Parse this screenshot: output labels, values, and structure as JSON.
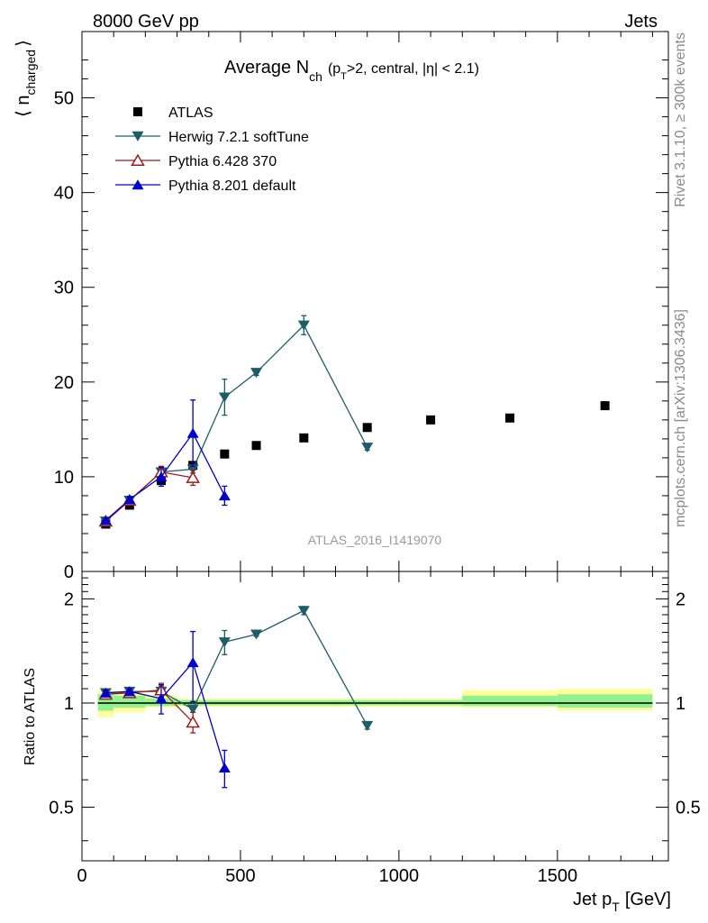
{
  "header": {
    "left": "8000 GeV pp",
    "right": "Jets"
  },
  "side_labels": {
    "rivet": "Rivet 3.1.10, ≥ 300k events",
    "mcplots": "mcplots.cern.ch [arXiv:1306.3436]"
  },
  "colors": {
    "atlas": "#000000",
    "herwig": "#1d5d68",
    "pythia6": "#9b1b1b",
    "pythia8": "#0000cc",
    "band_inner": "#8ff28f",
    "band_outer": "#ffff99",
    "watermark": "#999999"
  },
  "chart_data": [
    {
      "type": "scatter",
      "panel": "main",
      "title_parts": {
        "main": "Average N",
        "sub": "ch",
        "paren1": "(p",
        "psub": "T",
        "paren2": ">2, central, |η| < 2.1)"
      },
      "ylabel_main": "⟨ n",
      "ylabel_sub": "charged",
      "ylabel_close": "⟩",
      "xlim": [
        0,
        1850
      ],
      "ylim": [
        0,
        57
      ],
      "yticks": [
        0,
        10,
        20,
        30,
        40,
        50
      ],
      "watermark": "ATLAS_2016_I1419070",
      "legend_position": "top-left",
      "series": [
        {
          "name": "ATLAS",
          "marker": "square",
          "line": false,
          "points": [
            {
              "x": 75,
              "y": 5.0,
              "err": 0
            },
            {
              "x": 150,
              "y": 7.0,
              "err": 0
            },
            {
              "x": 250,
              "y": 9.6,
              "err": 0
            },
            {
              "x": 350,
              "y": 11.2,
              "err": 0
            },
            {
              "x": 450,
              "y": 12.4,
              "err": 0
            },
            {
              "x": 550,
              "y": 13.3,
              "err": 0
            },
            {
              "x": 700,
              "y": 14.1,
              "err": 0
            },
            {
              "x": 900,
              "y": 15.2,
              "err": 0
            },
            {
              "x": 1100,
              "y": 16.0,
              "err": 0
            },
            {
              "x": 1350,
              "y": 16.2,
              "err": 0
            },
            {
              "x": 1650,
              "y": 17.5,
              "err": 0
            }
          ]
        },
        {
          "name": "Herwig 7.2.1 softTune",
          "marker": "tri-down",
          "line": true,
          "points": [
            {
              "x": 75,
              "y": 5.3,
              "err": 0.2
            },
            {
              "x": 150,
              "y": 7.5,
              "err": 0.3
            },
            {
              "x": 250,
              "y": 10.5,
              "err": 0.5
            },
            {
              "x": 350,
              "y": 10.8,
              "err": 0.4
            },
            {
              "x": 450,
              "y": 18.4,
              "err": 1.9
            },
            {
              "x": 550,
              "y": 21.0,
              "err": 0.3
            },
            {
              "x": 700,
              "y": 26.0,
              "err": 1.0
            },
            {
              "x": 900,
              "y": 13.1,
              "err": 0.3
            }
          ]
        },
        {
          "name": "Pythia 6.428 370",
          "marker": "tri-up-open",
          "line": true,
          "points": [
            {
              "x": 75,
              "y": 5.3,
              "err": 0.2
            },
            {
              "x": 150,
              "y": 7.5,
              "err": 0.3
            },
            {
              "x": 250,
              "y": 10.5,
              "err": 0.6
            },
            {
              "x": 350,
              "y": 9.9,
              "err": 0.8
            }
          ]
        },
        {
          "name": "Pythia 8.201 default",
          "marker": "tri-up",
          "line": true,
          "points": [
            {
              "x": 75,
              "y": 5.4,
              "err": 0.2
            },
            {
              "x": 150,
              "y": 7.6,
              "err": 0.3
            },
            {
              "x": 250,
              "y": 10.0,
              "err": 1.0
            },
            {
              "x": 350,
              "y": 14.6,
              "err": 3.5
            },
            {
              "x": 450,
              "y": 8.0,
              "err": 1.0
            }
          ]
        }
      ]
    },
    {
      "type": "scatter",
      "panel": "ratio",
      "ylabel": "Ratio to ATLAS",
      "xlabel_main": "Jet p",
      "xlabel_sub": "T",
      "xlabel_unit": "[GeV]",
      "xlim": [
        0,
        1850
      ],
      "ylim": [
        0.35,
        2.4
      ],
      "log_y": true,
      "xticks": [
        0,
        500,
        1000,
        1500
      ],
      "xtick_labels": [
        "0",
        "500",
        "1000",
        "1500"
      ],
      "yticks": [
        0.5,
        1,
        2
      ],
      "ytick_labels": [
        "0.5",
        "1",
        "2"
      ],
      "uncertainty_band": [
        {
          "x0": 50,
          "x1": 100,
          "inner": [
            0.95,
            1.06
          ],
          "outer": [
            0.91,
            1.09
          ]
        },
        {
          "x0": 100,
          "x1": 200,
          "inner": [
            0.97,
            1.05
          ],
          "outer": [
            0.94,
            1.08
          ]
        },
        {
          "x0": 200,
          "x1": 300,
          "inner": [
            0.98,
            1.03
          ],
          "outer": [
            0.97,
            1.05
          ]
        },
        {
          "x0": 300,
          "x1": 400,
          "inner": [
            0.985,
            1.02
          ],
          "outer": [
            0.975,
            1.03
          ]
        },
        {
          "x0": 400,
          "x1": 500,
          "inner": [
            0.985,
            1.02
          ],
          "outer": [
            0.975,
            1.03
          ]
        },
        {
          "x0": 500,
          "x1": 600,
          "inner": [
            0.985,
            1.02
          ],
          "outer": [
            0.975,
            1.03
          ]
        },
        {
          "x0": 600,
          "x1": 800,
          "inner": [
            0.985,
            1.02
          ],
          "outer": [
            0.975,
            1.03
          ]
        },
        {
          "x0": 800,
          "x1": 1000,
          "inner": [
            0.985,
            1.02
          ],
          "outer": [
            0.975,
            1.03
          ]
        },
        {
          "x0": 1000,
          "x1": 1200,
          "inner": [
            0.985,
            1.02
          ],
          "outer": [
            0.975,
            1.03
          ]
        },
        {
          "x0": 1200,
          "x1": 1500,
          "inner": [
            0.98,
            1.05
          ],
          "outer": [
            0.97,
            1.09
          ]
        },
        {
          "x0": 1500,
          "x1": 1800,
          "inner": [
            0.97,
            1.06
          ],
          "outer": [
            0.95,
            1.1
          ]
        }
      ],
      "series": [
        {
          "name": "Herwig 7.2.1 softTune",
          "marker": "tri-down",
          "points": [
            {
              "x": 75,
              "y": 1.07,
              "err": 0.02
            },
            {
              "x": 150,
              "y": 1.08,
              "err": 0.02
            },
            {
              "x": 250,
              "y": 1.08,
              "err": 0.04
            },
            {
              "x": 350,
              "y": 0.96,
              "err": 0.02
            },
            {
              "x": 450,
              "y": 1.5,
              "err": 0.12
            },
            {
              "x": 550,
              "y": 1.58,
              "err": 0.02
            },
            {
              "x": 700,
              "y": 1.85,
              "err": 0.05
            },
            {
              "x": 900,
              "y": 0.86,
              "err": 0.02
            }
          ]
        },
        {
          "name": "Pythia 6.428 370",
          "marker": "tri-up-open",
          "points": [
            {
              "x": 75,
              "y": 1.06,
              "err": 0.02
            },
            {
              "x": 150,
              "y": 1.07,
              "err": 0.02
            },
            {
              "x": 250,
              "y": 1.09,
              "err": 0.05
            },
            {
              "x": 350,
              "y": 0.88,
              "err": 0.06
            }
          ]
        },
        {
          "name": "Pythia 8.201 default",
          "marker": "tri-up",
          "points": [
            {
              "x": 75,
              "y": 1.07,
              "err": 0.02
            },
            {
              "x": 150,
              "y": 1.08,
              "err": 0.02
            },
            {
              "x": 250,
              "y": 1.03,
              "err": 0.1
            },
            {
              "x": 350,
              "y": 1.31,
              "err": 0.3
            },
            {
              "x": 450,
              "y": 0.65,
              "err": 0.08
            }
          ]
        }
      ]
    }
  ]
}
